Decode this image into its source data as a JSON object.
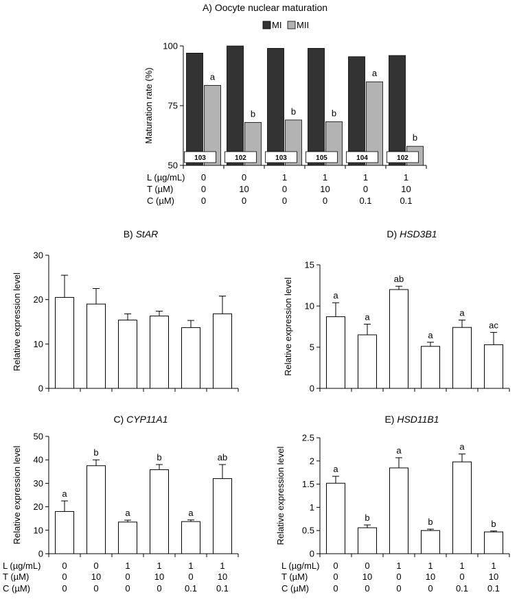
{
  "chart_data": [
    {
      "id": "A",
      "type": "bar",
      "title": "A) Oocyte nuclear maturation",
      "ylabel": "Maturation rate (%)",
      "ylim": [
        50,
        100
      ],
      "yticks": [
        50,
        75,
        100
      ],
      "legend": [
        "MI",
        "MII"
      ],
      "legend_position": "top",
      "colors": {
        "MI": "#333333",
        "MII": "#b3b3b3"
      },
      "series": [
        {
          "name": "MI",
          "values": [
            97,
            100,
            99,
            99,
            95.5,
            96
          ]
        },
        {
          "name": "MII",
          "values": [
            83.5,
            68,
            69,
            68.3,
            85,
            58
          ]
        }
      ],
      "significance_MII": [
        "a",
        "b",
        "b",
        "b",
        "a",
        "b"
      ],
      "n_labels": [
        "103",
        "102",
        "103",
        "105",
        "104",
        "102"
      ],
      "conditions": {
        "labels": [
          "L (µg/mL)",
          "T (µM)",
          "C (µM)"
        ],
        "rows": [
          [
            "0",
            "0",
            "1",
            "1",
            "1",
            "1"
          ],
          [
            "0",
            "10",
            "0",
            "10",
            "0",
            "10"
          ],
          [
            "0",
            "0",
            "0",
            "0",
            "0.1",
            "0.1"
          ]
        ]
      }
    },
    {
      "id": "B",
      "type": "bar",
      "title_prefix": "B) ",
      "title_gene": "StAR",
      "ylabel": "Relative expression level",
      "ylim": [
        0,
        30
      ],
      "yticks": [
        0,
        10,
        20,
        30
      ],
      "values": [
        20.5,
        19,
        15.4,
        16.3,
        13.7,
        16.8
      ],
      "errors": [
        5,
        3.5,
        1.4,
        1.1,
        1.6,
        4
      ],
      "significance": [
        "",
        "",
        "",
        "",
        "",
        ""
      ]
    },
    {
      "id": "C",
      "type": "bar",
      "title_prefix": "C) ",
      "title_gene": "CYP11A1",
      "ylabel": "Relative expression level",
      "ylim": [
        0,
        50
      ],
      "yticks": [
        0,
        10,
        20,
        30,
        40,
        50
      ],
      "values": [
        18,
        37.5,
        13.5,
        35.8,
        13.7,
        32
      ],
      "errors": [
        4.5,
        2.5,
        0.8,
        2.2,
        0.7,
        6
      ],
      "significance": [
        "a",
        "b",
        "a",
        "b",
        "a",
        "ab"
      ],
      "conditions": {
        "labels": [
          "L (µg/mL)",
          "T (µM)",
          "C (µM)"
        ],
        "rows": [
          [
            "0",
            "0",
            "1",
            "1",
            "1",
            "1"
          ],
          [
            "0",
            "10",
            "0",
            "10",
            "0",
            "10"
          ],
          [
            "0",
            "0",
            "0",
            "0",
            "0.1",
            "0.1"
          ]
        ]
      }
    },
    {
      "id": "D",
      "type": "bar",
      "title_prefix": "D) ",
      "title_gene": "HSD3B1",
      "ylabel": "Relative expression level",
      "ylim": [
        0,
        15
      ],
      "yticks": [
        0,
        5,
        10,
        15
      ],
      "values": [
        8.7,
        6.5,
        12,
        5.1,
        7.4,
        5.3
      ],
      "errors": [
        1.7,
        1.3,
        0.4,
        0.5,
        0.9,
        1.5
      ],
      "significance": [
        "a",
        "a",
        "ab",
        "a",
        "a",
        "ac"
      ]
    },
    {
      "id": "E",
      "type": "bar",
      "title_prefix": "E) ",
      "title_gene": "HSD11B1",
      "ylabel": "Relative expression level",
      "ylim": [
        0,
        2.5
      ],
      "yticks": [
        0,
        0.5,
        1,
        1.5,
        2,
        2.5
      ],
      "values": [
        1.52,
        0.56,
        1.85,
        0.5,
        1.98,
        0.47
      ],
      "errors": [
        0.15,
        0.06,
        0.22,
        0.03,
        0.17,
        0.02
      ],
      "significance": [
        "a",
        "b",
        "a",
        "b",
        "a",
        "b"
      ],
      "conditions": {
        "labels": [
          "L (µg/mL)",
          "T (µM)",
          "C (µM)"
        ],
        "rows": [
          [
            "0",
            "0",
            "1",
            "1",
            "1",
            "1"
          ],
          [
            "0",
            "10",
            "0",
            "10",
            "0",
            "10"
          ],
          [
            "0",
            "0",
            "0",
            "0",
            "0.1",
            "0.1"
          ]
        ]
      }
    }
  ]
}
